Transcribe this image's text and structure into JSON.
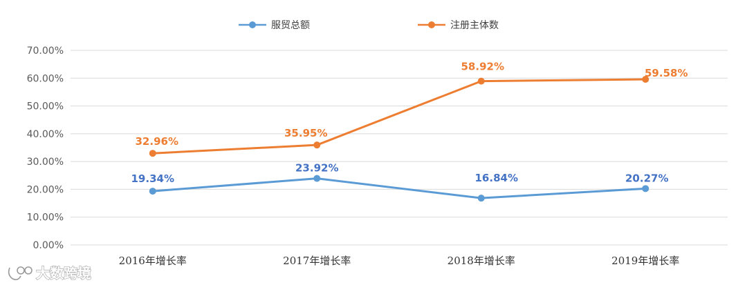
{
  "chart_data": {
    "type": "line",
    "categories": [
      "2016年增长率",
      "2017年增长率",
      "2018年增长率",
      "2019年增长率"
    ],
    "series": [
      {
        "name": "服贸总额",
        "values": [
          19.34,
          23.92,
          16.84,
          20.27
        ],
        "labels": [
          "19.34%",
          "23.92%",
          "16.84%",
          "20.27%"
        ],
        "color": "#5b9bd5",
        "label_color": "#4472c4"
      },
      {
        "name": "注册主体数",
        "values": [
          32.96,
          35.95,
          58.92,
          59.58
        ],
        "labels": [
          "32.96%",
          "35.95%",
          "58.92%",
          "59.58%"
        ],
        "color": "#ed7d31",
        "label_color": "#ed7d31"
      }
    ],
    "yticks": [
      0,
      10,
      20,
      30,
      40,
      50,
      60,
      70
    ],
    "ytick_labels": [
      "0.00%",
      "10.00%",
      "20.00%",
      "30.00%",
      "40.00%",
      "50.00%",
      "60.00%",
      "70.00%"
    ],
    "ylim": [
      0,
      70
    ],
    "grid": true,
    "legend_position": "top"
  },
  "watermark": {
    "text": "大数跨境"
  },
  "colors": {
    "grid": "#d9d9d9",
    "axis_text": "#595959"
  }
}
